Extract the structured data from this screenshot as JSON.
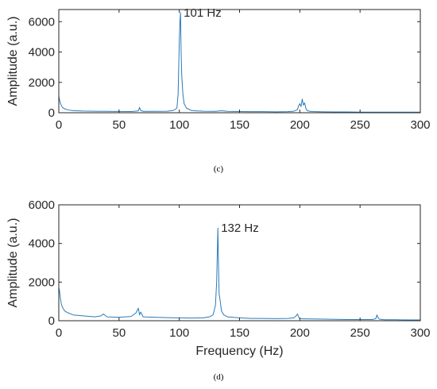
{
  "chart_data": [
    {
      "type": "line",
      "caption": "(c)",
      "xlabel": "",
      "ylabel": "Amplitude (a.u.)",
      "xlim": [
        0,
        300
      ],
      "ylim": [
        0,
        6800
      ],
      "xticks": [
        0,
        50,
        100,
        150,
        200,
        250,
        300
      ],
      "yticks": [
        0,
        2000,
        4000,
        6000
      ],
      "x_tick_labels": [
        "0",
        "50",
        "100",
        "150",
        "200",
        "250",
        "300"
      ],
      "y_tick_labels": [
        "0",
        "2000",
        "4000",
        "6000"
      ],
      "grid": false,
      "color": "#2a7ab9",
      "annotations": [
        {
          "text": "101 Hz",
          "x": 101,
          "y": 6600
        }
      ],
      "series": [
        {
          "x": [
            0,
            1,
            2,
            3,
            5,
            8,
            12,
            20,
            30,
            40,
            50,
            60,
            66,
            67,
            68,
            70,
            80,
            90,
            95,
            98,
            99,
            100,
            100.5,
            101,
            101.5,
            102,
            103,
            104,
            106,
            110,
            115,
            120,
            130,
            135,
            140,
            150,
            160,
            170,
            180,
            190,
            195,
            198,
            199,
            200,
            201,
            202,
            203,
            204,
            205,
            206,
            208,
            210,
            220,
            230,
            240,
            250,
            260,
            270,
            280,
            290,
            300
          ],
          "y": [
            1100,
            700,
            500,
            350,
            250,
            180,
            140,
            110,
            100,
            90,
            85,
            80,
            120,
            350,
            150,
            90,
            90,
            100,
            150,
            300,
            1200,
            4700,
            6000,
            6600,
            4000,
            2500,
            1200,
            600,
            300,
            150,
            120,
            100,
            90,
            130,
            90,
            80,
            70,
            70,
            60,
            70,
            100,
            200,
            450,
            600,
            400,
            900,
            500,
            650,
            300,
            150,
            100,
            80,
            60,
            50,
            50,
            40,
            40,
            40,
            40,
            40,
            40
          ]
        }
      ]
    },
    {
      "type": "line",
      "caption": "(d)",
      "xlabel": "Frequency (Hz)",
      "ylabel": "Amplitude (a.u.)",
      "xlim": [
        0,
        300
      ],
      "ylim": [
        0,
        6000
      ],
      "xticks": [
        0,
        50,
        100,
        150,
        200,
        250,
        300
      ],
      "yticks": [
        0,
        2000,
        4000,
        6000
      ],
      "x_tick_labels": [
        "0",
        "50",
        "100",
        "150",
        "200",
        "250",
        "300"
      ],
      "y_tick_labels": [
        "0",
        "2000",
        "4000",
        "6000"
      ],
      "grid": false,
      "color": "#2a7ab9",
      "annotations": [
        {
          "text": "132 Hz",
          "x": 132,
          "y": 4800
        }
      ],
      "series": [
        {
          "x": [
            0,
            0.5,
            1,
            2,
            3,
            5,
            8,
            12,
            20,
            30,
            35,
            37,
            40,
            50,
            60,
            64,
            66,
            67,
            68,
            70,
            80,
            90,
            100,
            110,
            120,
            125,
            128,
            130,
            131,
            132,
            132.5,
            133,
            134,
            135,
            137,
            140,
            150,
            160,
            170,
            180,
            190,
            195,
            197,
            198,
            199,
            200,
            202,
            210,
            220,
            230,
            240,
            250,
            260,
            263,
            264,
            265,
            266,
            270,
            280,
            290,
            300
          ],
          "y": [
            1700,
            1600,
            1300,
            900,
            700,
            500,
            400,
            300,
            250,
            200,
            250,
            350,
            200,
            180,
            220,
            400,
            650,
            300,
            450,
            200,
            180,
            160,
            150,
            140,
            150,
            200,
            300,
            800,
            2000,
            4800,
            3000,
            1400,
            1000,
            500,
            300,
            200,
            150,
            120,
            120,
            110,
            120,
            150,
            250,
            350,
            200,
            120,
            100,
            90,
            80,
            70,
            60,
            60,
            60,
            100,
            300,
            150,
            80,
            50,
            50,
            40,
            40
          ]
        }
      ]
    }
  ]
}
